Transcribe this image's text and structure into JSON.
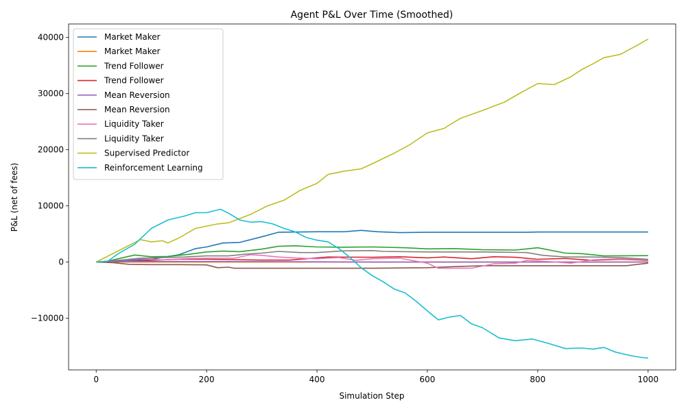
{
  "chart_data": {
    "type": "line",
    "title": "Agent P&L Over Time (Smoothed)",
    "xlabel": "Simulation Step",
    "ylabel": "P&L (net of fees)",
    "xlim": [
      -50,
      1050
    ],
    "ylim": [
      -19200,
      42400
    ],
    "xticks": [
      0,
      200,
      400,
      600,
      800,
      1000
    ],
    "yticks": [
      -10000,
      0,
      10000,
      20000,
      30000,
      40000
    ],
    "xtick_labels": [
      "0",
      "200",
      "400",
      "600",
      "800",
      "1000"
    ],
    "ytick_labels": [
      "−10000",
      "0",
      "10000",
      "20000",
      "30000",
      "40000"
    ],
    "grid": false,
    "legend_position": "upper-left",
    "series": [
      {
        "name": "Market Maker",
        "color": "#1f77b4",
        "points": [
          [
            0,
            0
          ],
          [
            20,
            100
          ],
          [
            50,
            300
          ],
          [
            100,
            500
          ],
          [
            150,
            1300
          ],
          [
            180,
            2400
          ],
          [
            200,
            2700
          ],
          [
            230,
            3400
          ],
          [
            260,
            3500
          ],
          [
            300,
            4500
          ],
          [
            330,
            5300
          ],
          [
            400,
            5400
          ],
          [
            450,
            5400
          ],
          [
            480,
            5650
          ],
          [
            510,
            5400
          ],
          [
            550,
            5250
          ],
          [
            600,
            5300
          ],
          [
            700,
            5300
          ],
          [
            780,
            5300
          ],
          [
            800,
            5350
          ],
          [
            900,
            5350
          ],
          [
            1000,
            5350
          ]
        ]
      },
      {
        "name": "Market Maker",
        "color": "#ff7f0e",
        "points": [
          [
            0,
            0
          ],
          [
            1000,
            0
          ]
        ]
      },
      {
        "name": "Trend Follower",
        "color": "#2ca02c",
        "points": [
          [
            0,
            0
          ],
          [
            20,
            150
          ],
          [
            40,
            600
          ],
          [
            70,
            1250
          ],
          [
            100,
            950
          ],
          [
            130,
            1000
          ],
          [
            170,
            1400
          ],
          [
            200,
            1800
          ],
          [
            230,
            1950
          ],
          [
            260,
            1850
          ],
          [
            300,
            2300
          ],
          [
            330,
            2800
          ],
          [
            360,
            2900
          ],
          [
            400,
            2700
          ],
          [
            450,
            2650
          ],
          [
            500,
            2700
          ],
          [
            560,
            2550
          ],
          [
            600,
            2350
          ],
          [
            650,
            2400
          ],
          [
            700,
            2200
          ],
          [
            760,
            2150
          ],
          [
            800,
            2550
          ],
          [
            850,
            1600
          ],
          [
            880,
            1500
          ],
          [
            920,
            1100
          ],
          [
            1000,
            1150
          ]
        ]
      },
      {
        "name": "Trend Follower",
        "color": "#d62728",
        "points": [
          [
            0,
            0
          ],
          [
            50,
            100
          ],
          [
            100,
            300
          ],
          [
            150,
            500
          ],
          [
            200,
            500
          ],
          [
            300,
            350
          ],
          [
            350,
            350
          ],
          [
            420,
            900
          ],
          [
            500,
            850
          ],
          [
            550,
            950
          ],
          [
            600,
            750
          ],
          [
            630,
            900
          ],
          [
            680,
            600
          ],
          [
            720,
            950
          ],
          [
            760,
            850
          ],
          [
            800,
            500
          ],
          [
            850,
            650
          ],
          [
            900,
            300
          ],
          [
            950,
            500
          ],
          [
            1000,
            300
          ]
        ]
      },
      {
        "name": "Mean Reversion",
        "color": "#9467bd",
        "points": [
          [
            0,
            0
          ],
          [
            50,
            80
          ],
          [
            100,
            100
          ],
          [
            200,
            100
          ],
          [
            300,
            80
          ],
          [
            400,
            50
          ],
          [
            500,
            0
          ],
          [
            600,
            0
          ],
          [
            700,
            0
          ],
          [
            800,
            0
          ],
          [
            900,
            0
          ],
          [
            1000,
            0
          ]
        ]
      },
      {
        "name": "Mean Reversion",
        "color": "#8c564b",
        "points": [
          [
            0,
            0
          ],
          [
            30,
            -100
          ],
          [
            60,
            -400
          ],
          [
            100,
            -450
          ],
          [
            150,
            -450
          ],
          [
            200,
            -500
          ],
          [
            220,
            -1000
          ],
          [
            240,
            -900
          ],
          [
            250,
            -1100
          ],
          [
            300,
            -1100
          ],
          [
            400,
            -1100
          ],
          [
            500,
            -1100
          ],
          [
            600,
            -1000
          ],
          [
            650,
            -800
          ],
          [
            700,
            -650
          ],
          [
            800,
            -650
          ],
          [
            900,
            -650
          ],
          [
            960,
            -650
          ],
          [
            1000,
            -200
          ]
        ]
      },
      {
        "name": "Liquidity Taker",
        "color": "#e377c2",
        "points": [
          [
            0,
            0
          ],
          [
            40,
            300
          ],
          [
            80,
            600
          ],
          [
            120,
            400
          ],
          [
            160,
            600
          ],
          [
            200,
            700
          ],
          [
            250,
            700
          ],
          [
            280,
            1300
          ],
          [
            300,
            1200
          ],
          [
            330,
            900
          ],
          [
            370,
            700
          ],
          [
            400,
            600
          ],
          [
            440,
            800
          ],
          [
            470,
            300
          ],
          [
            500,
            600
          ],
          [
            550,
            700
          ],
          [
            600,
            -200
          ],
          [
            620,
            -1100
          ],
          [
            680,
            -1100
          ],
          [
            720,
            -300
          ],
          [
            760,
            -200
          ],
          [
            780,
            300
          ],
          [
            820,
            100
          ],
          [
            860,
            -200
          ],
          [
            900,
            400
          ],
          [
            950,
            600
          ],
          [
            1000,
            400
          ]
        ]
      },
      {
        "name": "Liquidity Taker",
        "color": "#7f7f7f",
        "points": [
          [
            0,
            0
          ],
          [
            40,
            300
          ],
          [
            80,
            700
          ],
          [
            120,
            800
          ],
          [
            160,
            900
          ],
          [
            200,
            1100
          ],
          [
            240,
            1100
          ],
          [
            270,
            1400
          ],
          [
            300,
            1600
          ],
          [
            330,
            1900
          ],
          [
            370,
            1700
          ],
          [
            400,
            1700
          ],
          [
            450,
            2000
          ],
          [
            500,
            2050
          ],
          [
            520,
            1900
          ],
          [
            600,
            1800
          ],
          [
            700,
            1800
          ],
          [
            780,
            1700
          ],
          [
            810,
            1200
          ],
          [
            850,
            900
          ],
          [
            900,
            900
          ],
          [
            950,
            800
          ],
          [
            1000,
            500
          ]
        ]
      },
      {
        "name": "Supervised Predictor",
        "color": "#bcbd22",
        "points": [
          [
            0,
            0
          ],
          [
            50,
            2500
          ],
          [
            80,
            4000
          ],
          [
            100,
            3600
          ],
          [
            120,
            3800
          ],
          [
            130,
            3400
          ],
          [
            150,
            4300
          ],
          [
            180,
            6000
          ],
          [
            200,
            6400
          ],
          [
            220,
            6800
          ],
          [
            240,
            7000
          ],
          [
            280,
            8500
          ],
          [
            310,
            10000
          ],
          [
            340,
            11000
          ],
          [
            370,
            12800
          ],
          [
            400,
            14000
          ],
          [
            420,
            15600
          ],
          [
            450,
            16200
          ],
          [
            480,
            16600
          ],
          [
            500,
            17500
          ],
          [
            540,
            19400
          ],
          [
            570,
            21000
          ],
          [
            600,
            23000
          ],
          [
            630,
            23800
          ],
          [
            660,
            25600
          ],
          [
            700,
            27000
          ],
          [
            740,
            28500
          ],
          [
            770,
            30200
          ],
          [
            800,
            31800
          ],
          [
            830,
            31600
          ],
          [
            860,
            33000
          ],
          [
            880,
            34300
          ],
          [
            900,
            35300
          ],
          [
            920,
            36400
          ],
          [
            950,
            37000
          ],
          [
            980,
            38600
          ],
          [
            1000,
            39700
          ]
        ]
      },
      {
        "name": "Reinforcement Learning",
        "color": "#17becf",
        "points": [
          [
            0,
            0
          ],
          [
            20,
            100
          ],
          [
            40,
            1500
          ],
          [
            70,
            3200
          ],
          [
            100,
            6000
          ],
          [
            130,
            7500
          ],
          [
            160,
            8200
          ],
          [
            180,
            8800
          ],
          [
            200,
            8800
          ],
          [
            225,
            9400
          ],
          [
            240,
            8700
          ],
          [
            260,
            7500
          ],
          [
            280,
            7100
          ],
          [
            300,
            7200
          ],
          [
            320,
            6800
          ],
          [
            340,
            6000
          ],
          [
            360,
            5400
          ],
          [
            380,
            4400
          ],
          [
            400,
            3900
          ],
          [
            420,
            3600
          ],
          [
            440,
            2400
          ],
          [
            460,
            800
          ],
          [
            480,
            -1000
          ],
          [
            500,
            -2400
          ],
          [
            520,
            -3500
          ],
          [
            540,
            -4800
          ],
          [
            560,
            -5500
          ],
          [
            580,
            -7000
          ],
          [
            600,
            -8700
          ],
          [
            620,
            -10300
          ],
          [
            640,
            -9800
          ],
          [
            660,
            -9500
          ],
          [
            680,
            -11000
          ],
          [
            700,
            -11700
          ],
          [
            730,
            -13500
          ],
          [
            760,
            -14000
          ],
          [
            790,
            -13700
          ],
          [
            820,
            -14500
          ],
          [
            850,
            -15400
          ],
          [
            880,
            -15300
          ],
          [
            900,
            -15500
          ],
          [
            920,
            -15200
          ],
          [
            940,
            -16000
          ],
          [
            970,
            -16700
          ],
          [
            990,
            -17000
          ],
          [
            1000,
            -17100
          ]
        ]
      }
    ]
  }
}
